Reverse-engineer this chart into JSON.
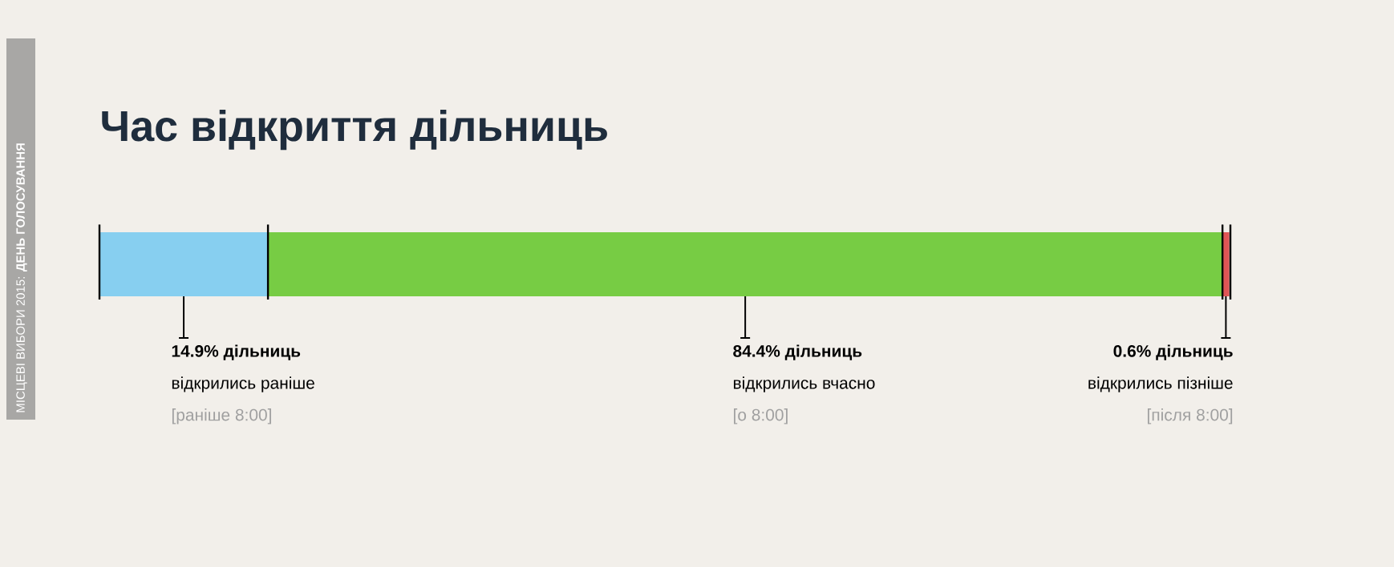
{
  "chart_data": {
    "type": "bar",
    "title": "Час відкриття дільниць",
    "orientation": "horizontal",
    "stacked": true,
    "categories": [
      null
    ],
    "xlim": [
      0,
      100
    ],
    "series": [
      {
        "color": "#87cff0",
        "values": [
          14.9
        ],
        "value_labels": [
          "14.9% дільниць"
        ]
      },
      {
        "color": "#77cc44",
        "values": [
          84.4
        ],
        "value_labels": [
          "84.4% дільниць"
        ]
      },
      {
        "color": "#e05555",
        "values": [
          0.6
        ],
        "value_labels": [
          "0.6% дільниць"
        ]
      }
    ],
    "ref_lines": [
      {
        "axis": "x",
        "value": 0,
        "color": "#000000"
      },
      {
        "axis": "x",
        "value": 14.9,
        "color": "#000000"
      },
      {
        "axis": "x",
        "value": 99.3,
        "color": "#000000"
      },
      {
        "axis": "x",
        "value": 100,
        "color": "#000000"
      }
    ],
    "annotations": [
      "МІСЦЕВІ ВИБОРИ 2015: **ДЕНЬ ГОЛОСУВАННЯ**",
      "відкрились раніше",
      "[раніше 8:00]",
      "відкрились вчасно",
      "[о 8:00]",
      "відкрились пізніше",
      "[після 8:00]"
    ]
  }
}
